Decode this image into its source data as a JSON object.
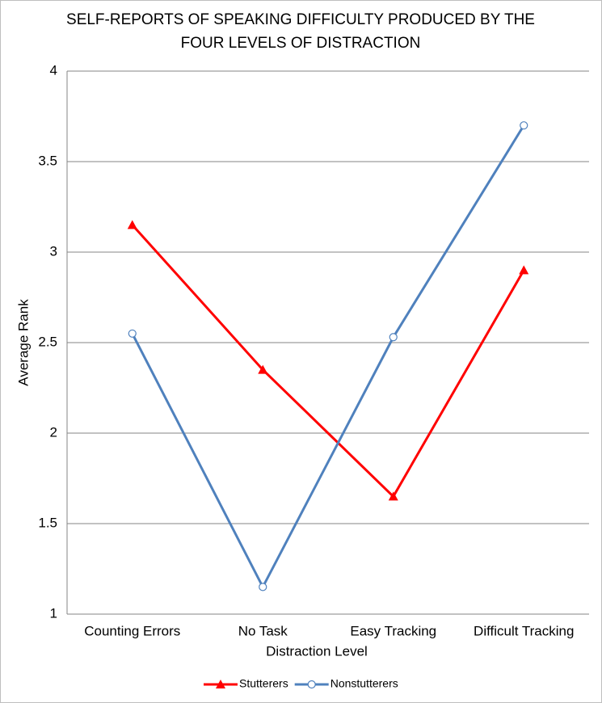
{
  "chart_data": {
    "type": "line",
    "title": [
      "SELF-REPORTS OF SPEAKING DIFFICULTY PRODUCED BY THE",
      "FOUR LEVELS OF DISTRACTION"
    ],
    "x_label": "Distraction Level",
    "y_label": "Average Rank",
    "categories": [
      "Counting Errors",
      "No Task",
      "Easy Tracking",
      "Difficult Tracking"
    ],
    "series": [
      {
        "name": "Stutterers",
        "color": "#ff0000",
        "marker": "triangle",
        "values": [
          3.15,
          2.35,
          1.65,
          2.9
        ]
      },
      {
        "name": "Nonstutterers",
        "color": "#4f81bd",
        "marker": "circle",
        "values": [
          2.55,
          1.15,
          2.53,
          3.7
        ]
      }
    ],
    "ylim": [
      1,
      4
    ],
    "yticks": [
      1,
      1.5,
      2,
      2.5,
      3,
      3.5,
      4
    ],
    "grid": true,
    "legend": "bottom"
  }
}
